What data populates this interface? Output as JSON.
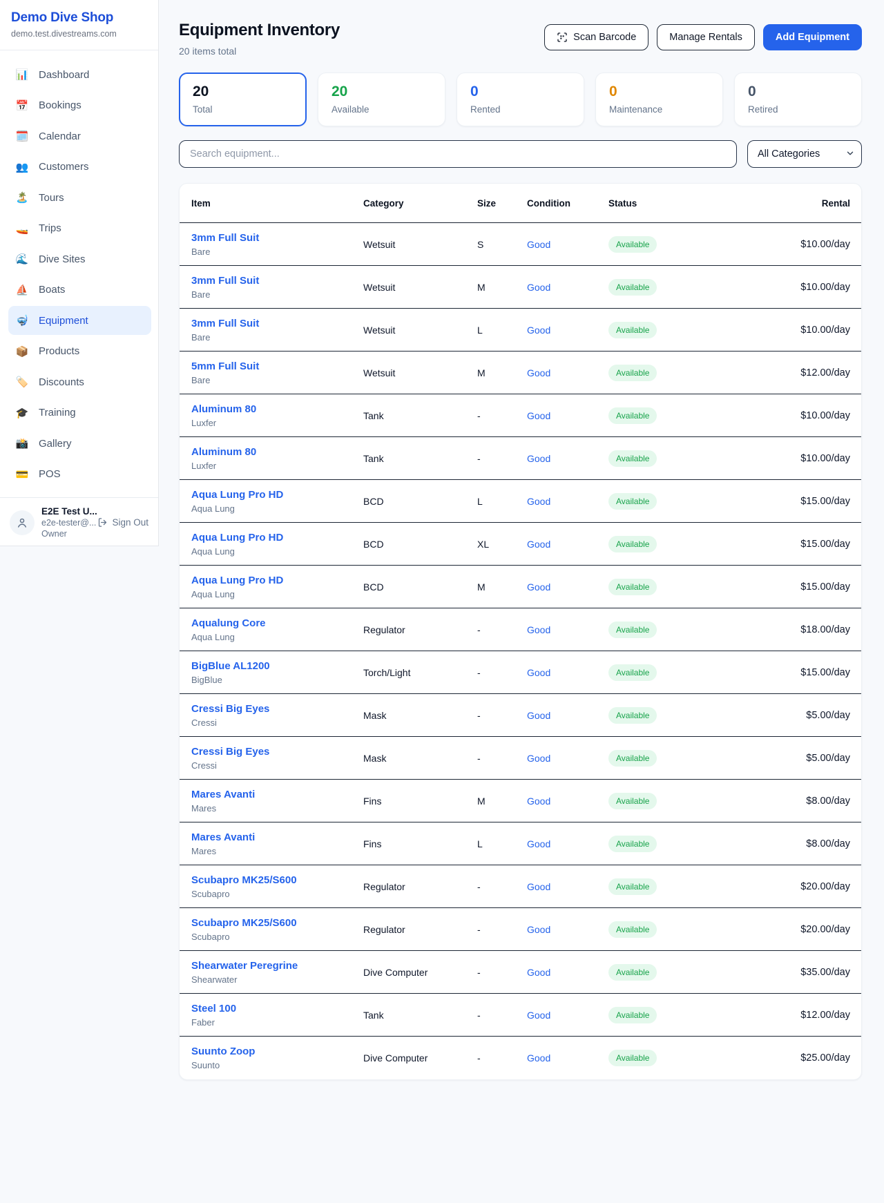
{
  "sidebar": {
    "brand": "Demo Dive Shop",
    "domain": "demo.test.divestreams.com",
    "items": [
      {
        "icon": "📊",
        "icon_name": "dashboard-icon",
        "label": "Dashboard",
        "active": false
      },
      {
        "icon": "📅",
        "icon_name": "bookings-icon",
        "label": "Bookings",
        "active": false
      },
      {
        "icon": "🗓️",
        "icon_name": "calendar-icon",
        "label": "Calendar",
        "active": false
      },
      {
        "icon": "👥",
        "icon_name": "customers-icon",
        "label": "Customers",
        "active": false
      },
      {
        "icon": "🏝️",
        "icon_name": "tours-icon",
        "label": "Tours",
        "active": false
      },
      {
        "icon": "🚤",
        "icon_name": "trips-icon",
        "label": "Trips",
        "active": false
      },
      {
        "icon": "🌊",
        "icon_name": "dive-sites-icon",
        "label": "Dive Sites",
        "active": false
      },
      {
        "icon": "⛵",
        "icon_name": "boats-icon",
        "label": "Boats",
        "active": false
      },
      {
        "icon": "🤿",
        "icon_name": "equipment-icon",
        "label": "Equipment",
        "active": true
      },
      {
        "icon": "📦",
        "icon_name": "products-icon",
        "label": "Products",
        "active": false
      },
      {
        "icon": "🏷️",
        "icon_name": "discounts-icon",
        "label": "Discounts",
        "active": false
      },
      {
        "icon": "🎓",
        "icon_name": "training-icon",
        "label": "Training",
        "active": false
      },
      {
        "icon": "📸",
        "icon_name": "gallery-icon",
        "label": "Gallery",
        "active": false
      },
      {
        "icon": "💳",
        "icon_name": "pos-icon",
        "label": "POS",
        "active": false
      }
    ],
    "user": {
      "name": "E2E Test U...",
      "email": "e2e-tester@...",
      "role": "Owner",
      "signout_label": "Sign Out"
    }
  },
  "header": {
    "title": "Equipment Inventory",
    "subtitle": "20 items total",
    "scan_barcode_label": "Scan Barcode",
    "manage_rentals_label": "Manage Rentals",
    "add_equipment_label": "Add Equipment"
  },
  "stats": [
    {
      "value": "20",
      "label": "Total",
      "color": "#0b1220",
      "selected": true
    },
    {
      "value": "20",
      "label": "Available",
      "color": "#16a34a",
      "selected": false
    },
    {
      "value": "0",
      "label": "Rented",
      "color": "#2563eb",
      "selected": false
    },
    {
      "value": "0",
      "label": "Maintenance",
      "color": "#e08700",
      "selected": false
    },
    {
      "value": "0",
      "label": "Retired",
      "color": "#475569",
      "selected": false
    }
  ],
  "filters": {
    "search_placeholder": "Search equipment...",
    "category_selected": "All Categories"
  },
  "table": {
    "columns": [
      "Item",
      "Category",
      "Size",
      "Condition",
      "Status",
      "Rental"
    ],
    "rows": [
      {
        "name": "3mm Full Suit",
        "brand": "Bare",
        "category": "Wetsuit",
        "size": "S",
        "condition": "Good",
        "status": "Available",
        "rental": "$10.00/day"
      },
      {
        "name": "3mm Full Suit",
        "brand": "Bare",
        "category": "Wetsuit",
        "size": "M",
        "condition": "Good",
        "status": "Available",
        "rental": "$10.00/day"
      },
      {
        "name": "3mm Full Suit",
        "brand": "Bare",
        "category": "Wetsuit",
        "size": "L",
        "condition": "Good",
        "status": "Available",
        "rental": "$10.00/day"
      },
      {
        "name": "5mm Full Suit",
        "brand": "Bare",
        "category": "Wetsuit",
        "size": "M",
        "condition": "Good",
        "status": "Available",
        "rental": "$12.00/day"
      },
      {
        "name": "Aluminum 80",
        "brand": "Luxfer",
        "category": "Tank",
        "size": "-",
        "condition": "Good",
        "status": "Available",
        "rental": "$10.00/day"
      },
      {
        "name": "Aluminum 80",
        "brand": "Luxfer",
        "category": "Tank",
        "size": "-",
        "condition": "Good",
        "status": "Available",
        "rental": "$10.00/day"
      },
      {
        "name": "Aqua Lung Pro HD",
        "brand": "Aqua Lung",
        "category": "BCD",
        "size": "L",
        "condition": "Good",
        "status": "Available",
        "rental": "$15.00/day"
      },
      {
        "name": "Aqua Lung Pro HD",
        "brand": "Aqua Lung",
        "category": "BCD",
        "size": "XL",
        "condition": "Good",
        "status": "Available",
        "rental": "$15.00/day"
      },
      {
        "name": "Aqua Lung Pro HD",
        "brand": "Aqua Lung",
        "category": "BCD",
        "size": "M",
        "condition": "Good",
        "status": "Available",
        "rental": "$15.00/day"
      },
      {
        "name": "Aqualung Core",
        "brand": "Aqua Lung",
        "category": "Regulator",
        "size": "-",
        "condition": "Good",
        "status": "Available",
        "rental": "$18.00/day"
      },
      {
        "name": "BigBlue AL1200",
        "brand": "BigBlue",
        "category": "Torch/Light",
        "size": "-",
        "condition": "Good",
        "status": "Available",
        "rental": "$15.00/day"
      },
      {
        "name": "Cressi Big Eyes",
        "brand": "Cressi",
        "category": "Mask",
        "size": "-",
        "condition": "Good",
        "status": "Available",
        "rental": "$5.00/day"
      },
      {
        "name": "Cressi Big Eyes",
        "brand": "Cressi",
        "category": "Mask",
        "size": "-",
        "condition": "Good",
        "status": "Available",
        "rental": "$5.00/day"
      },
      {
        "name": "Mares Avanti",
        "brand": "Mares",
        "category": "Fins",
        "size": "M",
        "condition": "Good",
        "status": "Available",
        "rental": "$8.00/day"
      },
      {
        "name": "Mares Avanti",
        "brand": "Mares",
        "category": "Fins",
        "size": "L",
        "condition": "Good",
        "status": "Available",
        "rental": "$8.00/day"
      },
      {
        "name": "Scubapro MK25/S600",
        "brand": "Scubapro",
        "category": "Regulator",
        "size": "-",
        "condition": "Good",
        "status": "Available",
        "rental": "$20.00/day"
      },
      {
        "name": "Scubapro MK25/S600",
        "brand": "Scubapro",
        "category": "Regulator",
        "size": "-",
        "condition": "Good",
        "status": "Available",
        "rental": "$20.00/day"
      },
      {
        "name": "Shearwater Peregrine",
        "brand": "Shearwater",
        "category": "Dive Computer",
        "size": "-",
        "condition": "Good",
        "status": "Available",
        "rental": "$35.00/day"
      },
      {
        "name": "Steel 100",
        "brand": "Faber",
        "category": "Tank",
        "size": "-",
        "condition": "Good",
        "status": "Available",
        "rental": "$12.00/day"
      },
      {
        "name": "Suunto Zoop",
        "brand": "Suunto",
        "category": "Dive Computer",
        "size": "-",
        "condition": "Good",
        "status": "Available",
        "rental": "$25.00/day"
      }
    ]
  },
  "colors": {
    "accent": "#2563eb",
    "status_available_bg": "#e4f8ec",
    "status_available_text": "#17a34a"
  }
}
